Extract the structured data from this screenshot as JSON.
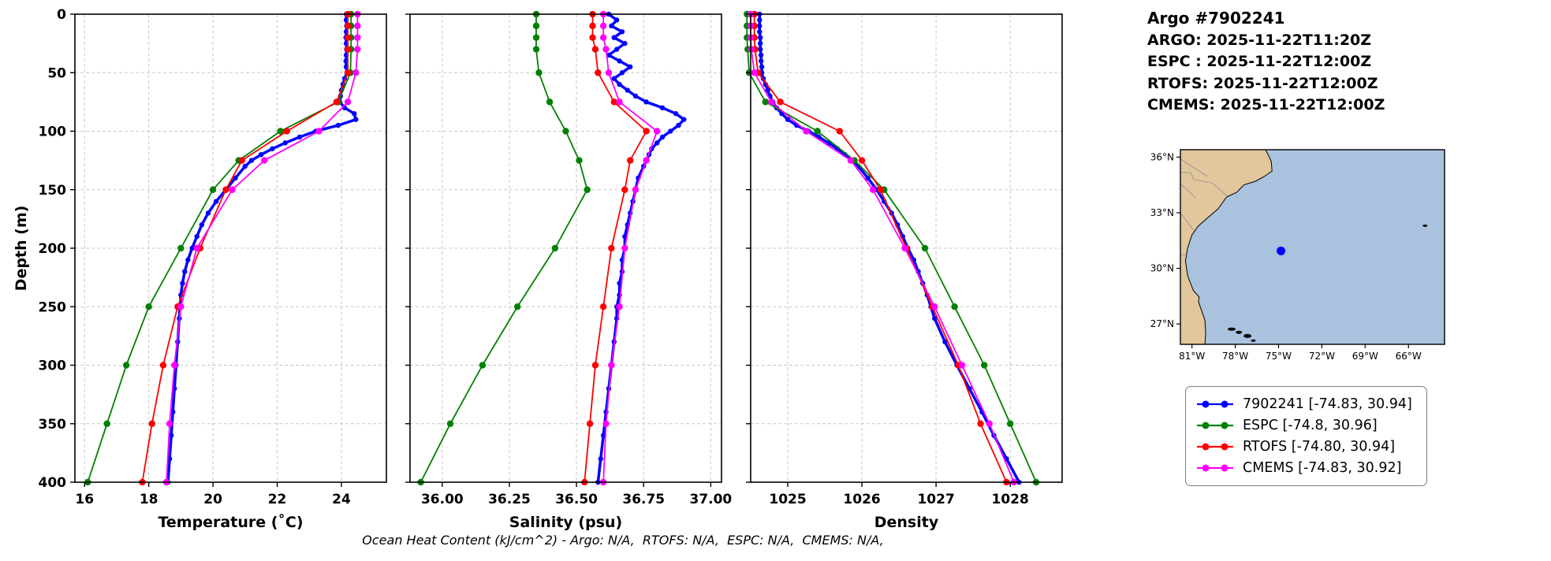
{
  "header": {
    "title": "Argo #7902241",
    "lines": [
      "ARGO: 2025-11-22T11:20Z",
      "ESPC : 2025-11-22T12:00Z",
      "RTOFS: 2025-11-22T12:00Z",
      "CMEMS: 2025-11-22T12:00Z"
    ]
  },
  "footer": {
    "text": "Ocean Heat Content (kJ/cm^2) - Argo: N/A,  RTOFS: N/A,  ESPC: N/A,  CMEMS: N/A,"
  },
  "colors": {
    "argo": "#0000ff",
    "espc": "#008000",
    "rtofs": "#ff0000",
    "cmems": "#ff00ff",
    "ocean": "#a9c2de",
    "land": "#e2c79c",
    "grid": "#c9c9c9"
  },
  "legend": {
    "items": [
      {
        "label": "7902241 [-74.83, 30.94]",
        "color": "#0000ff"
      },
      {
        "label": "ESPC [-74.8, 30.96]",
        "color": "#008000"
      },
      {
        "label": "RTOFS [-74.80, 30.94]",
        "color": "#ff0000"
      },
      {
        "label": "CMEMS [-74.83, 30.92]",
        "color": "#ff00ff"
      }
    ]
  },
  "map": {
    "lon_range": [
      -81.8,
      -63.5
    ],
    "lat_range": [
      25.9,
      36.4
    ],
    "lon_tick_values": [
      -81,
      -78,
      -75,
      -72,
      -69,
      -66
    ],
    "lon_tick_labels": [
      "81°W",
      "78°W",
      "75°W",
      "72°W",
      "69°W",
      "66°W"
    ],
    "lat_tick_values": [
      36,
      33,
      30,
      27
    ],
    "lat_tick_labels": [
      "36°N",
      "33°N",
      "30°N",
      "27°N"
    ],
    "float_marker": {
      "lon": -74.83,
      "lat": 30.94,
      "color": "#0000ff"
    }
  },
  "chart_data": [
    {
      "type": "line",
      "xlabel": "Temperature (˚C)",
      "ylabel": "Depth (m)",
      "show_depth_labels": true,
      "xlim": [
        15.7,
        25.4
      ],
      "ylim": [
        0,
        400
      ],
      "xticks": [
        16,
        18,
        20,
        22,
        24
      ],
      "xtick_labels": [
        "16",
        "18",
        "20",
        "22",
        "24"
      ],
      "yticks": [
        0,
        50,
        100,
        150,
        200,
        250,
        300,
        350,
        400
      ],
      "series": [
        {
          "name": "7902241",
          "color": "#0000ff",
          "lw": 3.5,
          "ms": 3.2,
          "depth": [
            0,
            5,
            10,
            15,
            20,
            25,
            30,
            35,
            40,
            45,
            50,
            55,
            60,
            65,
            70,
            75,
            80,
            85,
            90,
            95,
            100,
            105,
            110,
            115,
            120,
            125,
            130,
            140,
            150,
            160,
            170,
            180,
            190,
            200,
            210,
            220,
            230,
            240,
            250,
            260,
            280,
            300,
            320,
            340,
            360,
            380,
            400
          ],
          "values": [
            24.15,
            24.15,
            24.16,
            24.15,
            24.14,
            24.15,
            24.16,
            24.15,
            24.14,
            24.15,
            24.17,
            24.1,
            24.05,
            24.0,
            23.97,
            23.95,
            24.1,
            24.4,
            24.45,
            23.9,
            23.2,
            22.7,
            22.25,
            21.85,
            21.5,
            21.2,
            21.0,
            20.7,
            20.4,
            20.1,
            19.85,
            19.65,
            19.5,
            19.35,
            19.22,
            19.12,
            19.05,
            19.0,
            18.97,
            18.95,
            18.9,
            18.85,
            18.8,
            18.75,
            18.7,
            18.65,
            18.6
          ]
        },
        {
          "name": "ESPC",
          "color": "#008000",
          "lw": 1.8,
          "ms": 4.2,
          "depth": [
            0,
            10,
            20,
            30,
            50,
            75,
            100,
            125,
            150,
            200,
            250,
            300,
            350,
            400
          ],
          "values": [
            24.3,
            24.3,
            24.3,
            24.3,
            24.28,
            23.9,
            22.1,
            20.8,
            20.0,
            19.0,
            18.0,
            17.3,
            16.7,
            16.1
          ]
        },
        {
          "name": "RTOFS",
          "color": "#ff0000",
          "lw": 1.8,
          "ms": 4.2,
          "depth": [
            0,
            10,
            20,
            30,
            50,
            75,
            100,
            125,
            150,
            200,
            250,
            300,
            350,
            400
          ],
          "values": [
            24.2,
            24.2,
            24.2,
            24.2,
            24.2,
            23.85,
            22.3,
            20.9,
            20.4,
            19.6,
            18.9,
            18.45,
            18.1,
            17.8
          ]
        },
        {
          "name": "CMEMS",
          "color": "#ff00ff",
          "lw": 1.8,
          "ms": 4.2,
          "depth": [
            0,
            10,
            20,
            30,
            50,
            75,
            100,
            125,
            150,
            200,
            250,
            300,
            350,
            400
          ],
          "values": [
            24.5,
            24.5,
            24.5,
            24.5,
            24.45,
            24.2,
            23.3,
            21.6,
            20.6,
            19.5,
            19.0,
            18.8,
            18.65,
            18.55
          ]
        }
      ]
    },
    {
      "type": "line",
      "xlabel": "Salinity (psu)",
      "ylabel": "",
      "show_depth_labels": false,
      "xlim": [
        35.88,
        37.04
      ],
      "ylim": [
        0,
        400
      ],
      "xticks": [
        36.0,
        36.25,
        36.5,
        36.75,
        37.0
      ],
      "xtick_labels": [
        "36.00",
        "36.25",
        "36.50",
        "36.75",
        "37.00"
      ],
      "yticks": [
        0,
        50,
        100,
        150,
        200,
        250,
        300,
        350,
        400
      ],
      "series": [
        {
          "name": "7902241",
          "color": "#0000ff",
          "lw": 3.5,
          "ms": 3.2,
          "depth": [
            0,
            5,
            10,
            15,
            20,
            25,
            30,
            35,
            40,
            45,
            50,
            55,
            60,
            65,
            70,
            75,
            80,
            85,
            90,
            95,
            100,
            105,
            110,
            115,
            120,
            125,
            130,
            140,
            150,
            160,
            170,
            180,
            190,
            200,
            210,
            220,
            230,
            240,
            250,
            260,
            280,
            300,
            320,
            340,
            360,
            380,
            400
          ],
          "values": [
            36.62,
            36.65,
            36.63,
            36.67,
            36.64,
            36.68,
            36.65,
            36.62,
            36.66,
            36.7,
            36.67,
            36.64,
            36.66,
            36.69,
            36.72,
            36.76,
            36.82,
            36.87,
            36.9,
            36.88,
            36.85,
            36.82,
            36.8,
            36.78,
            36.77,
            36.76,
            36.75,
            36.73,
            36.72,
            36.71,
            36.7,
            36.69,
            36.68,
            36.68,
            36.67,
            36.67,
            36.66,
            36.66,
            36.65,
            36.65,
            36.64,
            36.63,
            36.62,
            36.61,
            36.6,
            36.59,
            36.58
          ]
        },
        {
          "name": "ESPC",
          "color": "#008000",
          "lw": 1.8,
          "ms": 4.2,
          "depth": [
            0,
            10,
            20,
            30,
            50,
            75,
            100,
            125,
            150,
            200,
            250,
            300,
            350,
            400
          ],
          "values": [
            36.35,
            36.35,
            36.35,
            36.35,
            36.36,
            36.4,
            36.46,
            36.51,
            36.54,
            36.42,
            36.28,
            36.15,
            36.03,
            35.92
          ]
        },
        {
          "name": "RTOFS",
          "color": "#ff0000",
          "lw": 1.8,
          "ms": 4.2,
          "depth": [
            0,
            10,
            20,
            30,
            50,
            75,
            100,
            125,
            150,
            200,
            250,
            300,
            350,
            400
          ],
          "values": [
            36.56,
            36.56,
            36.56,
            36.57,
            36.58,
            36.64,
            36.76,
            36.7,
            36.68,
            36.63,
            36.6,
            36.57,
            36.55,
            36.53
          ]
        },
        {
          "name": "CMEMS",
          "color": "#ff00ff",
          "lw": 1.8,
          "ms": 4.2,
          "depth": [
            0,
            10,
            20,
            30,
            50,
            75,
            100,
            125,
            150,
            200,
            250,
            300,
            350,
            400
          ],
          "values": [
            36.6,
            36.6,
            36.6,
            36.61,
            36.62,
            36.66,
            36.8,
            36.76,
            36.72,
            36.68,
            36.66,
            36.63,
            36.61,
            36.6
          ]
        }
      ]
    },
    {
      "type": "line",
      "xlabel": "Density",
      "ylabel": "",
      "show_depth_labels": false,
      "xlim": [
        1024.5,
        1028.7
      ],
      "ylim": [
        0,
        400
      ],
      "xticks": [
        1025,
        1026,
        1027,
        1028
      ],
      "xtick_labels": [
        "1025",
        "1026",
        "1027",
        "1028"
      ],
      "yticks": [
        0,
        50,
        100,
        150,
        200,
        250,
        300,
        350,
        400
      ],
      "series": [
        {
          "name": "7902241",
          "color": "#0000ff",
          "lw": 3.5,
          "ms": 3.2,
          "depth": [
            0,
            5,
            10,
            15,
            20,
            25,
            30,
            35,
            40,
            45,
            50,
            55,
            60,
            65,
            70,
            75,
            80,
            85,
            90,
            95,
            100,
            105,
            110,
            115,
            120,
            125,
            130,
            140,
            150,
            160,
            170,
            180,
            190,
            200,
            210,
            220,
            230,
            240,
            250,
            260,
            280,
            300,
            320,
            340,
            360,
            380,
            400
          ],
          "values": [
            1024.62,
            1024.62,
            1024.62,
            1024.62,
            1024.63,
            1024.63,
            1024.63,
            1024.64,
            1024.64,
            1024.65,
            1024.65,
            1024.67,
            1024.7,
            1024.73,
            1024.76,
            1024.8,
            1024.85,
            1024.92,
            1025.0,
            1025.12,
            1025.28,
            1025.42,
            1025.55,
            1025.67,
            1025.77,
            1025.86,
            1025.95,
            1026.08,
            1026.2,
            1026.3,
            1026.4,
            1026.48,
            1026.55,
            1026.62,
            1026.7,
            1026.76,
            1026.82,
            1026.88,
            1026.93,
            1026.98,
            1027.12,
            1027.28,
            1027.45,
            1027.62,
            1027.78,
            1027.95,
            1028.12
          ]
        },
        {
          "name": "ESPC",
          "color": "#008000",
          "lw": 1.8,
          "ms": 4.2,
          "depth": [
            0,
            10,
            20,
            30,
            50,
            75,
            100,
            125,
            150,
            200,
            250,
            300,
            350,
            400
          ],
          "values": [
            1024.45,
            1024.45,
            1024.45,
            1024.46,
            1024.48,
            1024.7,
            1025.4,
            1025.9,
            1026.3,
            1026.85,
            1027.25,
            1027.65,
            1028.0,
            1028.35
          ]
        },
        {
          "name": "RTOFS",
          "color": "#ff0000",
          "lw": 1.8,
          "ms": 4.2,
          "depth": [
            0,
            10,
            20,
            30,
            50,
            75,
            100,
            125,
            150,
            200,
            250,
            300,
            350,
            400
          ],
          "values": [
            1024.55,
            1024.55,
            1024.55,
            1024.56,
            1024.6,
            1024.9,
            1025.7,
            1026.0,
            1026.25,
            1026.6,
            1026.95,
            1027.3,
            1027.6,
            1027.95
          ]
        },
        {
          "name": "CMEMS",
          "color": "#ff00ff",
          "lw": 1.8,
          "ms": 4.2,
          "depth": [
            0,
            10,
            20,
            30,
            50,
            75,
            100,
            125,
            150,
            200,
            250,
            300,
            350,
            400
          ],
          "values": [
            1024.5,
            1024.5,
            1024.5,
            1024.51,
            1024.55,
            1024.78,
            1025.25,
            1025.85,
            1026.15,
            1026.58,
            1026.98,
            1027.35,
            1027.72,
            1028.05
          ]
        }
      ]
    }
  ]
}
